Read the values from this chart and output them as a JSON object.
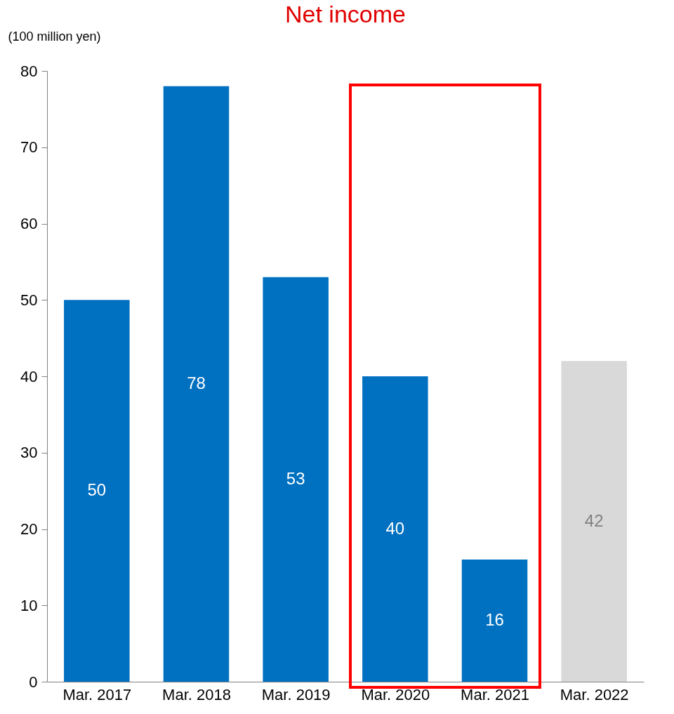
{
  "chart_data": {
    "type": "bar",
    "title": "Net income",
    "ylabel": "(100 million yen)",
    "categories": [
      "Mar. 2017",
      "Mar. 2018",
      "Mar. 2019",
      "Mar. 2020",
      "Mar. 2021",
      "Mar. 2022"
    ],
    "values": [
      50,
      78,
      53,
      40,
      16,
      42
    ],
    "colors": [
      "#0070c0",
      "#0070c0",
      "#0070c0",
      "#0070c0",
      "#0070c0",
      "#d9d9d9"
    ],
    "ylim": [
      0,
      80
    ],
    "yticks": [
      0,
      10,
      20,
      30,
      40,
      50,
      60,
      70,
      80
    ],
    "data_labels": true,
    "grid": false
  }
}
